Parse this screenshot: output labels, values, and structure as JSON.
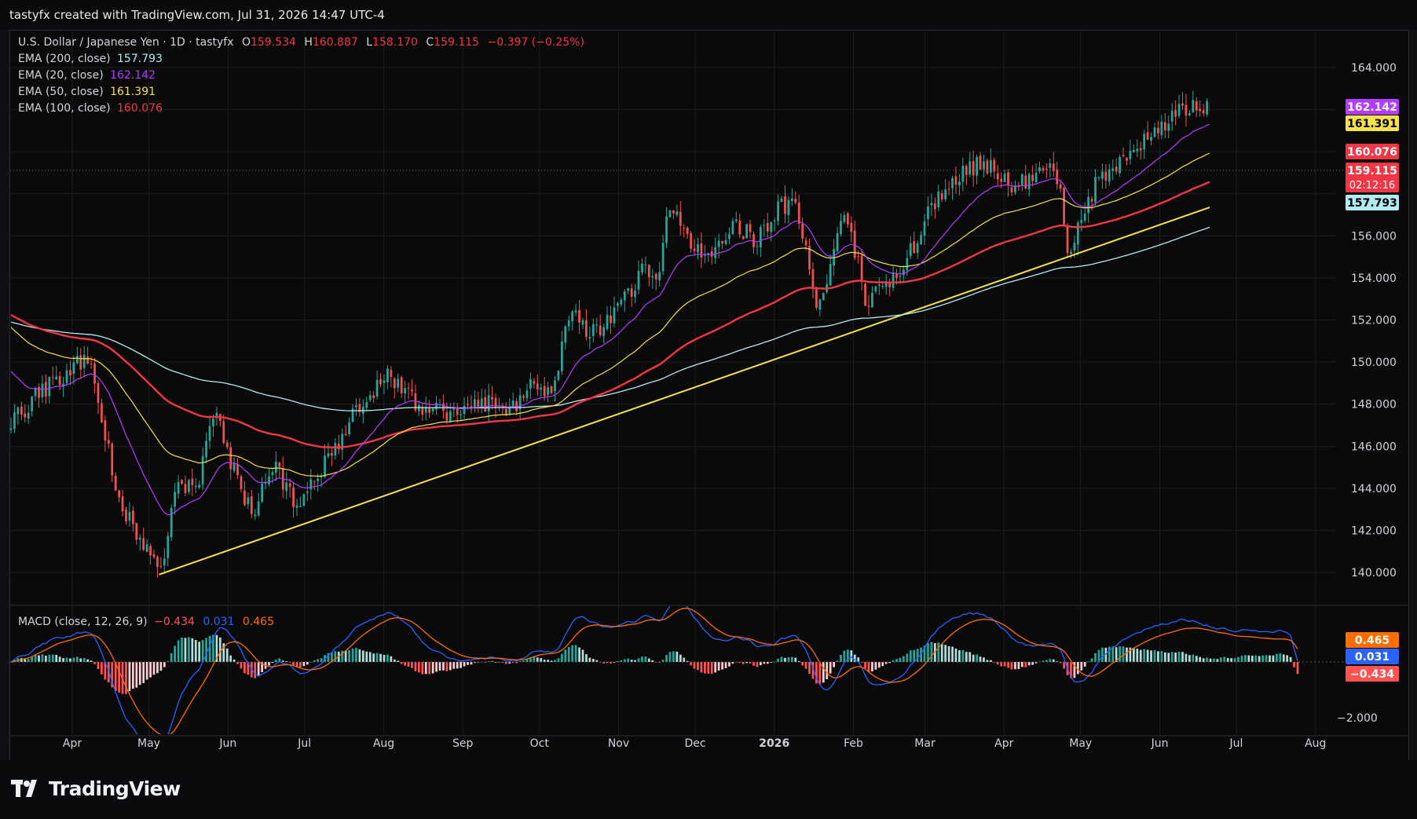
{
  "header": {
    "attribution": "tastyfx created with TradingView.com, Jul 31, 2026 14:47 UTC-4"
  },
  "legend": {
    "symbol": "U.S. Dollar / Japanese Yen · 1D · tastyfx",
    "o_label": "O",
    "open": "159.534",
    "h_label": "H",
    "high": "160.887",
    "l_label": "L",
    "low": "158.170",
    "c_label": "C",
    "close": "159.115",
    "change": "−0.397 (−0.25%)",
    "ema200": {
      "label": "EMA (200, close)",
      "value": "157.793",
      "color": "#b2ebf2"
    },
    "ema20": {
      "label": "EMA (20, close)",
      "value": "162.142",
      "color": "#b43cff"
    },
    "ema50": {
      "label": "EMA (50, close)",
      "value": "161.391",
      "color": "#f5e24a"
    },
    "ema100": {
      "label": "EMA (100, close)",
      "value": "160.076",
      "color": "#f23645"
    },
    "macd": {
      "label": "MACD (close, 12, 26, 9)",
      "hist": "−0.434",
      "macd": "0.031",
      "signal": "0.465"
    }
  },
  "price_tags": {
    "ema20": "162.142",
    "ema50": "161.391",
    "ema100": "160.076",
    "close": "159.115",
    "countdown": "02:12:16",
    "ema200": "157.793",
    "macd_signal": "0.465",
    "macd_line": "0.031",
    "macd_hist": "−0.434"
  },
  "colors": {
    "up": "#26a69a",
    "down": "#ef5350",
    "ema20": "#b43cff",
    "ema50": "#f5e24a",
    "ema100": "#f23645",
    "ema200": "#b2ebf2",
    "trendline": "#f5e24a",
    "macd_line": "#2962ff",
    "signal_line": "#ff6d00",
    "hist_up_strong": "#26a69a",
    "hist_up_weak": "#b2dfdb",
    "hist_down_strong": "#ff5252",
    "hist_down_weak": "#ffcdd2"
  },
  "chart_data": {
    "type": "candlestick",
    "title": "U.S. Dollar / Japanese Yen · 1D · tastyfx",
    "price_axis": {
      "ticks": [
        "164.000",
        "156.000",
        "154.000",
        "152.000",
        "150.000",
        "148.000",
        "146.000",
        "144.000",
        "142.000",
        "140.000"
      ],
      "range": [
        137.5,
        165.2
      ]
    },
    "macd_axis": {
      "ticks": [
        "−2.000"
      ],
      "range": [
        -2.7,
        1.7
      ]
    },
    "time_axis": {
      "labels": [
        "Apr",
        "May",
        "Jun",
        "Jul",
        "Aug",
        "Sep",
        "Oct",
        "Nov",
        "Dec",
        "2026",
        "Feb",
        "Mar",
        "Apr",
        "May",
        "Jun",
        "Jul",
        "Aug"
      ],
      "bold": [
        "2026"
      ],
      "range_days": [
        0,
        504
      ],
      "label_days": [
        24,
        54,
        85,
        115,
        146,
        177,
        207,
        238,
        268,
        299,
        330,
        358,
        389,
        419,
        450,
        480,
        511
      ]
    },
    "price_keypoints": [
      [
        0,
        147
      ],
      [
        10,
        148.5
      ],
      [
        20,
        149.3
      ],
      [
        26,
        150.2
      ],
      [
        32,
        149.6
      ],
      [
        42,
        143.5
      ],
      [
        50,
        141.8
      ],
      [
        58,
        139.9
      ],
      [
        66,
        144.5
      ],
      [
        72,
        143.6
      ],
      [
        80,
        147.8
      ],
      [
        86,
        145.3
      ],
      [
        95,
        142.5
      ],
      [
        102,
        145.3
      ],
      [
        112,
        143.2
      ],
      [
        120,
        144.7
      ],
      [
        126,
        145.6
      ],
      [
        135,
        147.6
      ],
      [
        147,
        149.4
      ],
      [
        160,
        147.8
      ],
      [
        172,
        147.5
      ],
      [
        187,
        148.1
      ],
      [
        196,
        147.6
      ],
      [
        205,
        149.2
      ],
      [
        212,
        148.4
      ],
      [
        219,
        152.6
      ],
      [
        226,
        151.2
      ],
      [
        233,
        151.8
      ],
      [
        243,
        153.5
      ],
      [
        248,
        154.5
      ],
      [
        254,
        154.3
      ],
      [
        258,
        157.6
      ],
      [
        262,
        156.5
      ],
      [
        269,
        155.3
      ],
      [
        276,
        155.3
      ],
      [
        284,
        156.5
      ],
      [
        292,
        155.8
      ],
      [
        300,
        157.2
      ],
      [
        307,
        157.8
      ],
      [
        311,
        155.5
      ],
      [
        316,
        152.6
      ],
      [
        320,
        153.6
      ],
      [
        325,
        157.0
      ],
      [
        331,
        155.2
      ],
      [
        335,
        152.6
      ],
      [
        341,
        153.5
      ],
      [
        347,
        154.0
      ],
      [
        355,
        155.9
      ],
      [
        361,
        157.5
      ],
      [
        370,
        158.8
      ],
      [
        381,
        159.6
      ],
      [
        391,
        158.3
      ],
      [
        403,
        158.9
      ],
      [
        407,
        159.8
      ],
      [
        411,
        158.2
      ],
      [
        414,
        154.9
      ],
      [
        418,
        156.3
      ],
      [
        425,
        158.5
      ],
      [
        432,
        159.1
      ],
      [
        442,
        160.4
      ],
      [
        450,
        161.0
      ],
      [
        460,
        162.1
      ],
      [
        470,
        162.3
      ],
      [
        475,
        162.5
      ],
      [
        482,
        162.8
      ],
      [
        491,
        162.9
      ],
      [
        497,
        163.8
      ],
      [
        501,
        163.4
      ],
      [
        503,
        159.6
      ],
      [
        504,
        159.1
      ]
    ],
    "candle_count": 370,
    "ema": {
      "ema20_start": 149.85,
      "ema50_start": 151.85,
      "ema100_start": 152.35,
      "ema200_start": 151.95,
      "ema20_last": 162.142,
      "ema50_last": 161.391,
      "ema100_last": 160.076,
      "ema200_last": 157.793
    },
    "trendline": {
      "start": [
        58,
        139.9
      ],
      "end": [
        539,
        160.3
      ]
    },
    "last_close": 159.115
  }
}
